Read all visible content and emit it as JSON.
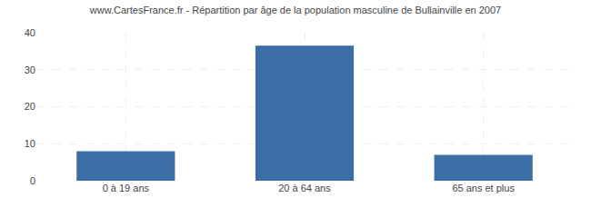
{
  "chart_data": {
    "type": "bar",
    "title": "www.CartesFrance.fr - Répartition par âge de la population masculine de Bullainville en 2007",
    "categories": [
      "0 à 19 ans",
      "20 à 64 ans",
      "65 ans et plus"
    ],
    "values": [
      8,
      36.5,
      7
    ],
    "color": "#3a6ea5",
    "ylim": [
      0,
      40
    ],
    "yticks": [
      0,
      10,
      20,
      30,
      40
    ],
    "grid": true
  }
}
